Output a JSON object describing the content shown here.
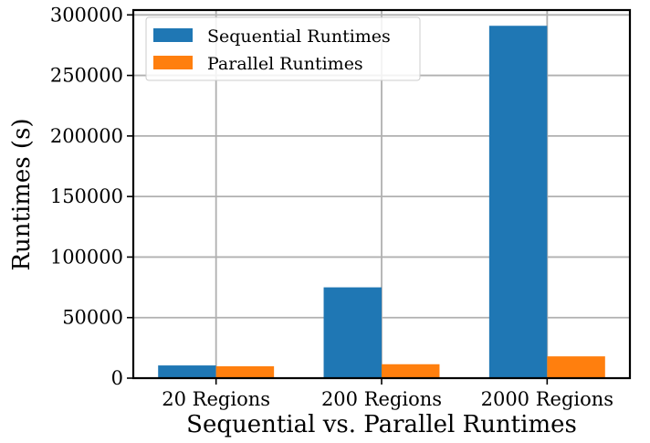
{
  "chart_data": {
    "type": "bar",
    "title": "",
    "xlabel": "Sequential vs. Parallel Runtimes",
    "ylabel": "Runtimes (s)",
    "categories": [
      "20 Regions",
      "200 Regions",
      "2000 Regions"
    ],
    "series": [
      {
        "name": "Sequential Runtimes",
        "color": "#1f77b4",
        "values": [
          10500,
          75000,
          291000
        ]
      },
      {
        "name": "Parallel Runtimes",
        "color": "#ff7f0e",
        "values": [
          9800,
          11500,
          18000
        ]
      }
    ],
    "ylim": [
      0,
      304000
    ],
    "yticks": [
      0,
      50000,
      100000,
      150000,
      200000,
      250000,
      300000
    ],
    "yticklabels": [
      "0",
      "50000",
      "100000",
      "150000",
      "200000",
      "250000",
      "300000"
    ],
    "grid": true,
    "legend": "top-left"
  }
}
